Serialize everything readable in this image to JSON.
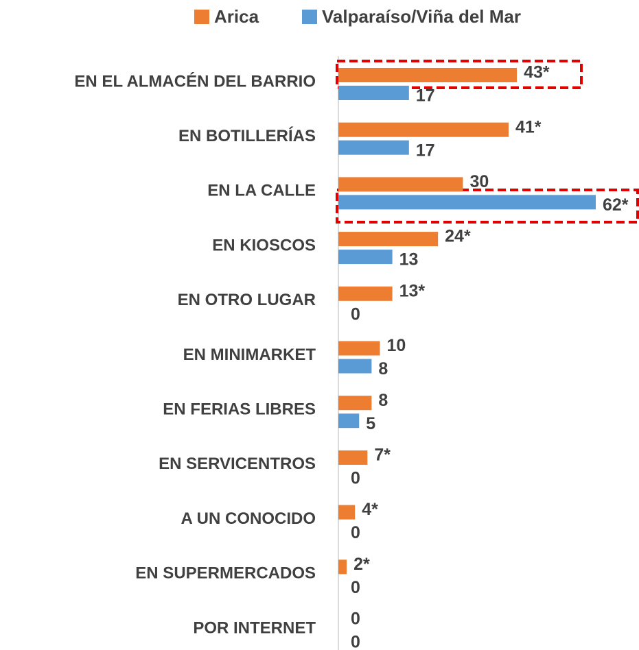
{
  "chart_data": {
    "type": "bar",
    "orientation": "horizontal",
    "categories": [
      "EN EL ALMACÉN DEL BARRIO",
      "EN BOTILLERÍAS",
      "EN LA CALLE",
      "EN KIOSCOS",
      "EN OTRO LUGAR",
      "EN MINIMARKET",
      "EN FERIAS LIBRES",
      "EN SERVICENTROS",
      "A UN CONOCIDO",
      "EN SUPERMERCADOS",
      "POR INTERNET"
    ],
    "series": [
      {
        "name": "Arica",
        "color": "#ed7d31",
        "values": [
          43,
          41,
          30,
          24,
          13,
          10,
          8,
          7,
          4,
          2,
          0
        ],
        "value_labels": [
          "43*",
          "41*",
          "30",
          "24*",
          "13*",
          "10",
          "8",
          "7*",
          "4*",
          "2*",
          "0"
        ]
      },
      {
        "name": "Valparaíso/Viña del Mar",
        "color": "#5b9bd5",
        "values": [
          17,
          17,
          62,
          13,
          0,
          8,
          5,
          0,
          0,
          0,
          0
        ],
        "value_labels": [
          "17",
          "17",
          "62*",
          "13",
          "0",
          "8",
          "5",
          "0",
          "0",
          "0",
          "0"
        ]
      }
    ],
    "xlim": [
      0,
      62
    ],
    "legend": "top"
  }
}
